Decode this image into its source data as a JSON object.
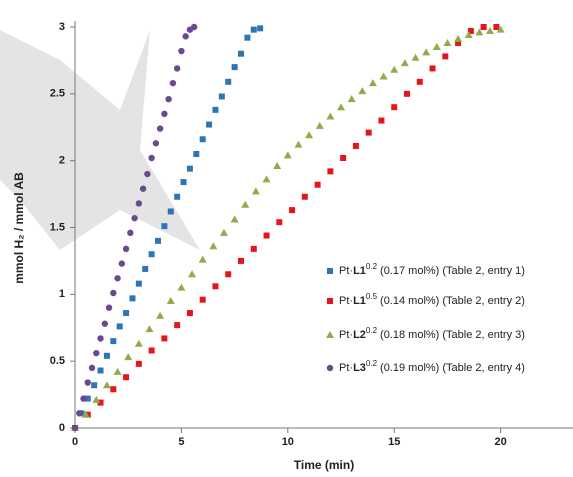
{
  "chart_data": {
    "type": "scatter",
    "x_label": "Time (min)",
    "y_label": "mmol H₂ / mmol AB",
    "xlim": [
      0,
      23.4
    ],
    "ylim": [
      0,
      3
    ],
    "xticks": [
      0,
      5,
      10,
      15,
      20
    ],
    "yticks": [
      0,
      0.5,
      1,
      1.5,
      2,
      2.5,
      3
    ],
    "legend": "right",
    "series": [
      {
        "name": "Pt·L1",
        "superscript": "0.2",
        "detail": "(0.17 mol%) (Table 2, entry 1)",
        "color": "#2e75b6",
        "marker": "square",
        "x": [
          0,
          0.3,
          0.6,
          0.9,
          1.2,
          1.5,
          1.8,
          2.1,
          2.4,
          2.7,
          3,
          3.3,
          3.6,
          3.9,
          4.2,
          4.5,
          4.8,
          5.1,
          5.4,
          5.7,
          6,
          6.3,
          6.6,
          6.9,
          7.2,
          7.5,
          7.8,
          8.1,
          8.4,
          8.7
        ],
        "values": [
          0,
          0.11,
          0.22,
          0.32,
          0.43,
          0.54,
          0.65,
          0.76,
          0.86,
          0.97,
          1.08,
          1.19,
          1.3,
          1.4,
          1.51,
          1.62,
          1.73,
          1.84,
          1.94,
          2.05,
          2.16,
          2.27,
          2.38,
          2.48,
          2.59,
          2.7,
          2.8,
          2.92,
          2.98,
          2.99
        ]
      },
      {
        "name": "Pt·L1",
        "superscript": "0.5",
        "detail": "(0.14 mol%) (Table 2, entry 2)",
        "color": "#e8141c",
        "marker": "square",
        "x": [
          0,
          0.6,
          1.2,
          1.8,
          2.4,
          3,
          3.6,
          4.2,
          4.8,
          5.4,
          6,
          6.6,
          7.2,
          7.8,
          8.4,
          9,
          9.6,
          10.2,
          10.8,
          11.4,
          12,
          12.6,
          13.2,
          13.8,
          14.4,
          15,
          15.6,
          16.2,
          16.8,
          17.4,
          18,
          18.6,
          19.2,
          19.8
        ],
        "values": [
          0,
          0.1,
          0.19,
          0.29,
          0.38,
          0.48,
          0.58,
          0.67,
          0.77,
          0.86,
          0.96,
          1.06,
          1.15,
          1.25,
          1.34,
          1.44,
          1.54,
          1.63,
          1.73,
          1.82,
          1.92,
          2.02,
          2.11,
          2.21,
          2.3,
          2.4,
          2.5,
          2.59,
          2.69,
          2.78,
          2.88,
          2.97,
          3,
          3
        ]
      },
      {
        "name": "Pt·L2",
        "superscript": "0.2",
        "detail": "(0.18 mol%) (Table 2, entry 3)",
        "color": "#8fac4a",
        "marker": "triangle",
        "x": [
          0,
          0.5,
          1,
          1.5,
          2,
          2.5,
          3,
          3.5,
          4,
          4.5,
          5,
          5.5,
          6,
          6.5,
          7,
          7.5,
          8,
          8.5,
          9,
          9.5,
          10,
          10.5,
          11,
          11.5,
          12,
          12.5,
          13,
          13.5,
          14,
          14.5,
          15,
          15.5,
          16,
          16.5,
          17,
          17.5,
          18,
          18.5,
          19,
          19.5,
          20
        ],
        "values": [
          0,
          0.1,
          0.21,
          0.32,
          0.42,
          0.53,
          0.63,
          0.74,
          0.84,
          0.95,
          1.05,
          1.15,
          1.26,
          1.36,
          1.46,
          1.56,
          1.67,
          1.77,
          1.86,
          1.96,
          2.04,
          2.12,
          2.19,
          2.26,
          2.33,
          2.4,
          2.46,
          2.52,
          2.58,
          2.63,
          2.68,
          2.73,
          2.77,
          2.81,
          2.85,
          2.88,
          2.91,
          2.94,
          2.96,
          2.97,
          2.98
        ]
      },
      {
        "name": "Pt·L3",
        "superscript": "0.2",
        "detail": "(0.19 mol%) (Table 2, entry 4)",
        "color": "#6a4a8f",
        "marker": "circle",
        "x": [
          0,
          0.2,
          0.4,
          0.6,
          0.8,
          1,
          1.2,
          1.4,
          1.6,
          1.8,
          2,
          2.2,
          2.4,
          2.6,
          2.8,
          3,
          3.2,
          3.4,
          3.6,
          3.8,
          4,
          4.2,
          4.4,
          4.6,
          4.8,
          5,
          5.2,
          5.4,
          5.6
        ],
        "values": [
          0,
          0.11,
          0.22,
          0.34,
          0.45,
          0.56,
          0.67,
          0.78,
          0.9,
          1.01,
          1.12,
          1.23,
          1.34,
          1.46,
          1.57,
          1.68,
          1.79,
          1.9,
          2.02,
          2.13,
          2.24,
          2.35,
          2.46,
          2.58,
          2.69,
          2.82,
          2.93,
          2.98,
          3
        ]
      }
    ]
  }
}
